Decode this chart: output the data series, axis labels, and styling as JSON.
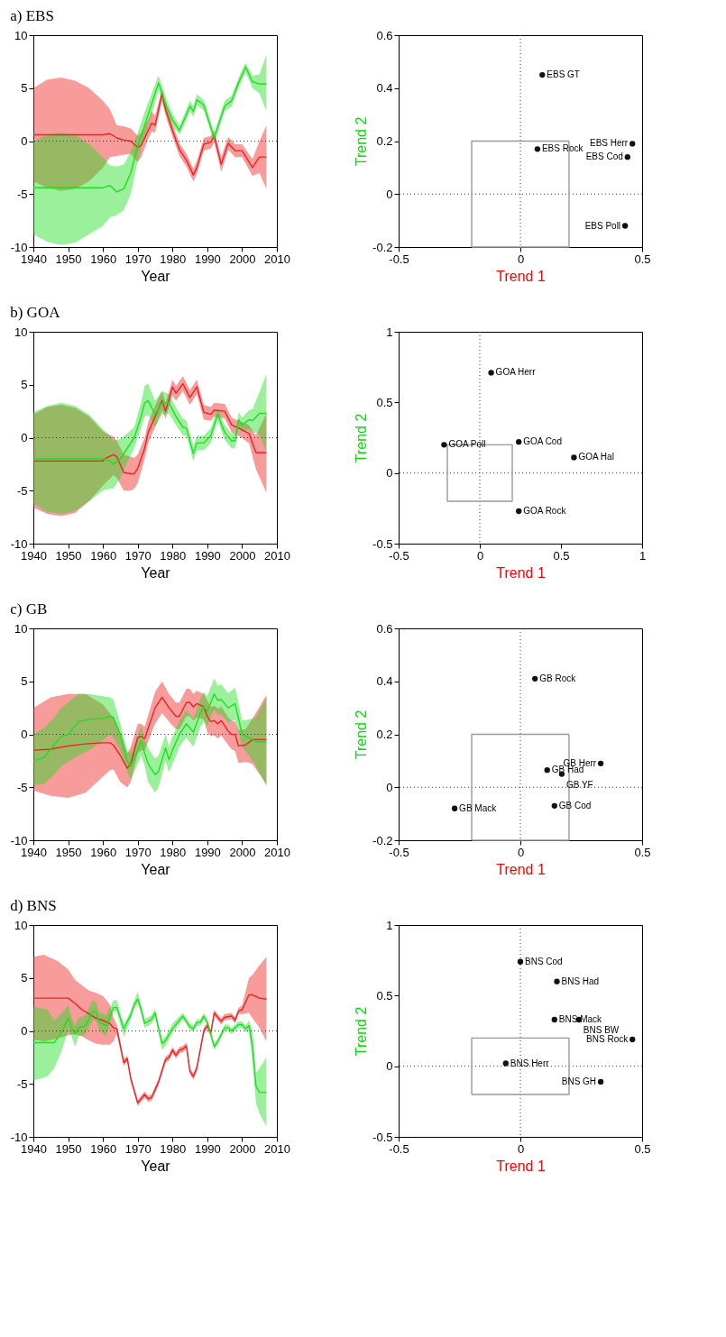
{
  "chart_data": [
    {
      "type": "line",
      "title": "a) EBS",
      "xlabel": "Year",
      "xlim": [
        1940,
        2010
      ],
      "xticks": [
        1940,
        1950,
        1960,
        1970,
        1980,
        1990,
        2000,
        2010
      ],
      "ylim": [
        -10,
        10
      ],
      "yticks": [
        -10,
        -5,
        0,
        5,
        10
      ],
      "ref_lines": [
        {
          "axis": "y",
          "value": 0,
          "line_style": "dotted"
        }
      ],
      "series": [
        {
          "color": "#ee2222",
          "x": [
            1940,
            1944,
            1948,
            1952,
            1956,
            1960,
            1962,
            1964,
            1966,
            1968,
            1970,
            1971,
            1973,
            1974,
            1975,
            1977,
            1978,
            1980,
            1982,
            1984,
            1986,
            1987,
            1989,
            1991,
            1992,
            1994,
            1996,
            1998,
            2000,
            2003,
            2005,
            2007
          ],
          "values": [
            0.6,
            0.6,
            0.6,
            0.6,
            0.6,
            0.6,
            0.7,
            0.3,
            0.1,
            0.0,
            -0.6,
            -0.4,
            1.0,
            1.7,
            1.5,
            4.5,
            3.0,
            1.0,
            -0.8,
            -1.8,
            -3.2,
            -2.5,
            -0.3,
            -0.1,
            0.5,
            -2.2,
            -0.2,
            -0.9,
            -0.9,
            -2.5,
            -1.5,
            -1.5
          ],
          "lower": [
            -3.8,
            -4.4,
            -4.7,
            -4.5,
            -3.8,
            -2.5,
            -1.5,
            -1.4,
            -1.3,
            -1.2,
            -2.0,
            -1.5,
            0.2,
            0.9,
            0.8,
            3.8,
            2.4,
            0.4,
            -1.4,
            -2.4,
            -3.8,
            -3.1,
            -0.9,
            -0.7,
            -0.1,
            -2.9,
            -0.8,
            -1.5,
            -1.5,
            -3.3,
            -3.0,
            -4.5
          ],
          "upper": [
            5.0,
            5.8,
            6.0,
            5.7,
            5.0,
            3.8,
            3.0,
            1.5,
            1.4,
            1.2,
            0.5,
            0.8,
            2.0,
            2.8,
            2.4,
            4.9,
            3.6,
            1.6,
            -0.2,
            -1.2,
            -2.6,
            -1.9,
            0.3,
            0.5,
            1.0,
            -1.5,
            0.4,
            -0.3,
            -0.3,
            -1.7,
            0.0,
            1.5
          ]
        },
        {
          "color": "#22dd22",
          "x": [
            1940,
            1944,
            1948,
            1952,
            1956,
            1960,
            1962,
            1964,
            1966,
            1968,
            1970,
            1972,
            1974,
            1976,
            1977,
            1978,
            1980,
            1982,
            1984,
            1985,
            1986,
            1987,
            1989,
            1992,
            1995,
            1997,
            1999,
            2001,
            2003,
            2005,
            2007
          ],
          "values": [
            -4.4,
            -4.4,
            -4.4,
            -4.4,
            -4.4,
            -4.4,
            -4.2,
            -4.8,
            -4.5,
            -3.0,
            -0.5,
            1.5,
            3.5,
            5.5,
            4.5,
            3.5,
            2.0,
            1.0,
            2.5,
            3.3,
            2.8,
            3.9,
            3.4,
            0.3,
            3.3,
            3.8,
            5.5,
            7.0,
            5.6,
            5.4,
            5.4
          ],
          "lower": [
            -8.8,
            -9.5,
            -9.8,
            -9.6,
            -8.8,
            -8.0,
            -7.2,
            -7.0,
            -6.5,
            -5.0,
            -1.8,
            0.5,
            2.5,
            4.8,
            3.8,
            2.8,
            1.4,
            0.6,
            2.0,
            2.8,
            2.3,
            3.4,
            2.9,
            -0.2,
            2.8,
            3.3,
            5.0,
            6.5,
            5.0,
            4.5,
            2.8
          ],
          "upper": [
            0.0,
            0.6,
            0.8,
            0.6,
            -0.3,
            -1.5,
            -2.3,
            -2.4,
            -2.2,
            -1.0,
            0.8,
            2.7,
            4.5,
            6.2,
            5.2,
            4.2,
            2.6,
            1.5,
            3.0,
            3.8,
            3.3,
            4.4,
            3.9,
            0.8,
            3.8,
            4.3,
            6.0,
            7.4,
            6.2,
            6.3,
            8.2
          ]
        }
      ]
    },
    {
      "type": "scatter",
      "xlabel": "Trend 1",
      "ylabel": "Trend 2",
      "xlim": [
        -0.5,
        0.5
      ],
      "xticks": [
        -0.5,
        0,
        0.5
      ],
      "ylim": [
        -0.2,
        0.6
      ],
      "yticks": [
        -0.2,
        0,
        0.2,
        0.4,
        0.6
      ],
      "ref_lines": [
        {
          "axis": "x",
          "value": 0,
          "line_style": "dotted"
        },
        {
          "axis": "y",
          "value": 0,
          "line_style": "dotted"
        }
      ],
      "series": [
        {
          "type": "line",
          "color": "#999999",
          "x": [
            -0.2,
            -0.2,
            0.2
          ],
          "values": [
            -0.2,
            0.2,
            0.2
          ]
        },
        {
          "type": "line",
          "color": "#999999",
          "x": [
            0.2,
            0.2,
            -0.2
          ],
          "values": [
            0.2,
            -0.2,
            -0.2
          ]
        },
        {
          "name": "EBS GT",
          "color": "#111111",
          "marker": "circle",
          "x": [
            0.09
          ],
          "values": [
            0.45
          ]
        },
        {
          "name": "EBS Rock",
          "color": "#111111",
          "marker": "circle",
          "x": [
            0.07
          ],
          "values": [
            0.17
          ]
        },
        {
          "name": "EBS Herr",
          "color": "#111111",
          "marker": "circle",
          "x": [
            0.46
          ],
          "values": [
            0.19
          ]
        },
        {
          "name": "EBS Cod",
          "color": "#111111",
          "marker": "circle",
          "x": [
            0.44
          ],
          "values": [
            0.14
          ]
        },
        {
          "name": "EBS Poll",
          "color": "#111111",
          "marker": "circle",
          "x": [
            0.43
          ],
          "values": [
            -0.12
          ]
        }
      ]
    },
    {
      "type": "line",
      "title": "b) GOA",
      "xlabel": "Year",
      "xlim": [
        1940,
        2010
      ],
      "xticks": [
        1940,
        1950,
        1960,
        1970,
        1980,
        1990,
        2000,
        2010
      ],
      "ylim": [
        -10,
        10
      ],
      "yticks": [
        -10,
        -5,
        0,
        5,
        10
      ],
      "ref_lines": [
        {
          "axis": "y",
          "value": 0,
          "line_style": "dotted"
        }
      ],
      "series": [
        {
          "color": "#ee2222",
          "x": [
            1940,
            1944,
            1948,
            1952,
            1956,
            1960,
            1961,
            1963,
            1964,
            1966,
            1968,
            1969,
            1970,
            1972,
            1973,
            1975,
            1977,
            1978,
            1980,
            1981,
            1983,
            1985,
            1987,
            1989,
            1991,
            1992,
            1995,
            1997,
            1999,
            2002,
            2004,
            2007
          ],
          "values": [
            -2.2,
            -2.2,
            -2.2,
            -2.2,
            -2.2,
            -2.2,
            -1.9,
            -1.6,
            -1.8,
            -3.3,
            -3.4,
            -3.4,
            -2.9,
            -1.0,
            0.5,
            2.0,
            3.5,
            2.5,
            4.8,
            4.2,
            5.1,
            3.8,
            4.8,
            2.4,
            2.2,
            2.6,
            2.5,
            1.2,
            0.9,
            0.4,
            -1.4,
            -1.4
          ],
          "lower": [
            -6.6,
            -7.2,
            -7.4,
            -7.1,
            -6.0,
            -4.5,
            -4.2,
            -3.5,
            -3.8,
            -5.0,
            -5.0,
            -4.8,
            -4.3,
            -2.0,
            -0.5,
            1.0,
            2.6,
            1.8,
            4.0,
            3.5,
            4.4,
            3.1,
            4.1,
            1.7,
            1.6,
            2.0,
            1.8,
            0.5,
            0.2,
            -0.5,
            -3.0,
            -5.2
          ],
          "upper": [
            2.2,
            2.9,
            3.1,
            2.8,
            2.0,
            0.6,
            0.4,
            0.1,
            -0.3,
            -1.6,
            -1.8,
            -1.9,
            -1.6,
            0.0,
            1.5,
            3.0,
            4.4,
            3.3,
            5.5,
            4.9,
            5.8,
            4.5,
            5.5,
            3.1,
            2.9,
            3.3,
            3.2,
            1.9,
            1.6,
            1.2,
            0.2,
            2.3
          ]
        },
        {
          "color": "#22dd22",
          "x": [
            1940,
            1944,
            1948,
            1952,
            1956,
            1960,
            1962,
            1963,
            1965,
            1967,
            1969,
            1971,
            1972,
            1973,
            1975,
            1977,
            1979,
            1981,
            1983,
            1984,
            1986,
            1987,
            1989,
            1991,
            1993,
            1995,
            1997,
            1998,
            1999,
            2000,
            2002,
            2003,
            2005,
            2007
          ],
          "values": [
            -2.0,
            -2.0,
            -2.0,
            -2.0,
            -2.0,
            -2.0,
            -2.2,
            -2.5,
            -2.0,
            -1.0,
            0.0,
            2.0,
            3.3,
            3.5,
            2.2,
            3.3,
            3.3,
            2.0,
            1.0,
            0.9,
            -1.5,
            -0.5,
            -0.5,
            0.2,
            2.2,
            0.5,
            -0.3,
            -0.3,
            1.7,
            1.2,
            1.7,
            1.6,
            2.3,
            2.3
          ],
          "lower": [
            -6.2,
            -7.0,
            -7.2,
            -6.9,
            -6.0,
            -5.0,
            -4.8,
            -4.8,
            -3.8,
            -2.3,
            -1.0,
            1.0,
            2.0,
            2.2,
            1.0,
            2.2,
            2.3,
            1.2,
            0.2,
            0.2,
            -2.2,
            -1.2,
            -1.2,
            -0.5,
            1.6,
            -0.2,
            -1.0,
            -1.0,
            1.0,
            0.5,
            0.8,
            0.6,
            0.3,
            -1.3
          ],
          "upper": [
            2.4,
            3.0,
            3.3,
            3.0,
            2.2,
            0.8,
            0.2,
            -0.3,
            -0.1,
            0.4,
            1.0,
            3.4,
            4.9,
            5.1,
            3.5,
            4.4,
            4.1,
            2.8,
            1.8,
            1.6,
            -0.8,
            0.2,
            0.2,
            0.9,
            2.8,
            1.2,
            0.4,
            0.4,
            2.4,
            1.9,
            2.6,
            2.7,
            4.3,
            6.0
          ]
        }
      ]
    },
    {
      "type": "scatter",
      "xlabel": "Trend 1",
      "ylabel": "Trend 2",
      "xlim": [
        -0.5,
        1
      ],
      "xticks": [
        -0.5,
        0,
        0.5,
        1
      ],
      "ylim": [
        -0.5,
        1
      ],
      "yticks": [
        -0.5,
        0,
        0.5,
        1
      ],
      "ref_lines": [
        {
          "axis": "x",
          "value": 0,
          "line_style": "dotted"
        },
        {
          "axis": "y",
          "value": 0,
          "line_style": "dotted"
        }
      ],
      "series": [
        {
          "type": "line",
          "color": "#999999",
          "x": [
            -0.2,
            -0.2,
            0.2
          ],
          "values": [
            -0.2,
            0.2,
            0.2
          ]
        },
        {
          "type": "line",
          "color": "#999999",
          "x": [
            0.2,
            0.2,
            -0.2
          ],
          "values": [
            0.2,
            -0.2,
            -0.2
          ]
        },
        {
          "name": "GOA Herr",
          "color": "#111111",
          "marker": "circle",
          "x": [
            0.07
          ],
          "values": [
            0.71
          ]
        },
        {
          "name": "GOA Poll",
          "color": "#111111",
          "marker": "circle",
          "x": [
            -0.22
          ],
          "values": [
            0.2
          ]
        },
        {
          "name": "GOA Cod",
          "color": "#111111",
          "marker": "circle",
          "x": [
            0.24
          ],
          "values": [
            0.22
          ]
        },
        {
          "name": "GOA Hal",
          "color": "#111111",
          "marker": "circle",
          "x": [
            0.58
          ],
          "values": [
            0.11
          ]
        },
        {
          "name": "GOA Rock",
          "color": "#111111",
          "marker": "circle",
          "x": [
            0.24
          ],
          "values": [
            -0.27
          ]
        }
      ]
    },
    {
      "type": "line",
      "title": "c) GB",
      "xlabel": "Year",
      "xlim": [
        1940,
        2010
      ],
      "xticks": [
        1940,
        1950,
        1960,
        1970,
        1980,
        1990,
        2000,
        2010
      ],
      "ylim": [
        -10,
        10
      ],
      "yticks": [
        -10,
        -5,
        0,
        5,
        10
      ],
      "ref_lines": [
        {
          "axis": "y",
          "value": 0,
          "line_style": "dotted"
        }
      ],
      "series": [
        {
          "color": "#ee2222",
          "x": [
            1940,
            1945,
            1950,
            1955,
            1960,
            1962,
            1963,
            1965,
            1967,
            1968,
            1970,
            1971,
            1972,
            1975,
            1977,
            1979,
            1981,
            1982,
            1984,
            1985,
            1986,
            1987,
            1989,
            1990,
            1991,
            1992,
            1993,
            1994,
            1996,
            1997,
            1998,
            1999,
            2001,
            2003,
            2007
          ],
          "values": [
            -1.5,
            -1.4,
            -1.1,
            -0.9,
            -0.8,
            -0.8,
            -1.0,
            -2.0,
            -3.2,
            -2.8,
            -0.3,
            -0.2,
            -0.4,
            2.5,
            3.5,
            2.5,
            1.7,
            1.7,
            3.0,
            3.0,
            2.6,
            2.9,
            2.6,
            1.7,
            1.2,
            1.3,
            1.0,
            1.3,
            0.3,
            0.0,
            0.0,
            -1.1,
            -1.0,
            -0.5,
            -0.5
          ],
          "lower": [
            -5.3,
            -5.8,
            -6.0,
            -5.5,
            -4.0,
            -3.4,
            -3.3,
            -4.5,
            -5.0,
            -4.5,
            -1.8,
            -1.5,
            -1.5,
            1.0,
            2.0,
            1.2,
            0.5,
            0.5,
            1.7,
            1.7,
            1.3,
            1.6,
            1.4,
            0.2,
            -0.2,
            -0.1,
            -0.4,
            -0.1,
            -1.0,
            -1.4,
            -1.6,
            -2.7,
            -2.6,
            -2.8,
            -4.7
          ],
          "upper": [
            2.5,
            3.5,
            3.8,
            3.8,
            2.8,
            2.0,
            1.5,
            0.2,
            -1.8,
            -1.2,
            1.0,
            1.0,
            0.7,
            4.0,
            5.0,
            3.8,
            3.0,
            3.0,
            4.3,
            4.3,
            3.8,
            4.1,
            3.8,
            3.2,
            2.6,
            2.7,
            2.4,
            2.6,
            1.6,
            1.3,
            1.2,
            0.4,
            0.5,
            1.5,
            3.7
          ]
        },
        {
          "color": "#22dd22",
          "x": [
            1940,
            1943,
            1946,
            1948,
            1950,
            1953,
            1956,
            1960,
            1962,
            1963,
            1965,
            1967,
            1968,
            1970,
            1971,
            1972,
            1973,
            1975,
            1976,
            1978,
            1979,
            1980,
            1982,
            1984,
            1986,
            1988,
            1989,
            1990,
            1992,
            1993,
            1994,
            1996,
            1998,
            2000,
            2002,
            2004,
            2007
          ],
          "values": [
            -2.5,
            -2.2,
            -1.0,
            -0.2,
            0.0,
            1.2,
            1.4,
            1.5,
            1.7,
            1.6,
            0.0,
            -2.5,
            -3.0,
            -1.5,
            -0.6,
            -1.8,
            -2.8,
            -3.8,
            -3.5,
            -1.3,
            -2.4,
            -1.5,
            0.0,
            1.0,
            0.2,
            2.0,
            2.6,
            2.2,
            3.8,
            3.2,
            3.3,
            2.5,
            2.9,
            0.0,
            -0.3,
            -0.7,
            -0.7
          ],
          "lower": [
            -4.8,
            -4.7,
            -3.8,
            -3.0,
            -2.6,
            -2.0,
            -1.5,
            -0.6,
            0.0,
            -0.3,
            -1.5,
            -3.5,
            -4.3,
            -2.8,
            -2.0,
            -3.0,
            -4.5,
            -5.5,
            -5.0,
            -2.5,
            -3.6,
            -2.8,
            -1.2,
            -0.3,
            -1.2,
            0.7,
            1.2,
            0.8,
            2.4,
            1.8,
            1.9,
            1.1,
            1.4,
            -1.2,
            -2.0,
            -3.0,
            -4.9
          ],
          "upper": [
            0.0,
            0.6,
            1.6,
            2.5,
            3.0,
            3.8,
            3.8,
            3.6,
            3.5,
            3.3,
            1.0,
            -1.5,
            -1.8,
            -0.2,
            0.8,
            -0.5,
            -1.3,
            -2.3,
            -2.0,
            0.0,
            -1.2,
            -0.2,
            1.3,
            2.3,
            1.5,
            3.3,
            4.0,
            3.6,
            5.3,
            4.6,
            4.7,
            3.9,
            4.4,
            1.3,
            1.4,
            1.6,
            3.5
          ]
        }
      ]
    },
    {
      "type": "scatter",
      "xlabel": "Trend 1",
      "ylabel": "Trend 2",
      "xlim": [
        -0.5,
        0.5
      ],
      "xticks": [
        -0.5,
        0,
        0.5
      ],
      "ylim": [
        -0.2,
        0.6
      ],
      "yticks": [
        -0.2,
        0,
        0.2,
        0.4,
        0.6
      ],
      "ref_lines": [
        {
          "axis": "x",
          "value": 0,
          "line_style": "dotted"
        },
        {
          "axis": "y",
          "value": 0,
          "line_style": "dotted"
        }
      ],
      "series": [
        {
          "type": "line",
          "color": "#999999",
          "x": [
            -0.2,
            -0.2,
            0.2
          ],
          "values": [
            -0.2,
            0.2,
            0.2
          ]
        },
        {
          "type": "line",
          "color": "#999999",
          "x": [
            0.2,
            0.2,
            -0.2
          ],
          "values": [
            0.2,
            -0.2,
            -0.2
          ]
        },
        {
          "name": "GB Rock",
          "color": "#111111",
          "marker": "circle",
          "x": [
            0.06
          ],
          "values": [
            0.41
          ]
        },
        {
          "name": "GB Had",
          "color": "#111111",
          "marker": "circle",
          "x": [
            0.11
          ],
          "values": [
            0.065
          ]
        },
        {
          "name": "GB YF",
          "color": "#111111",
          "marker": "circle",
          "x": [
            0.17
          ],
          "values": [
            0.05
          ]
        },
        {
          "name": "GB Herr",
          "color": "#111111",
          "marker": "circle",
          "x": [
            0.33
          ],
          "values": [
            0.09
          ]
        },
        {
          "name": "GB Cod",
          "color": "#111111",
          "marker": "circle",
          "x": [
            0.14
          ],
          "values": [
            -0.07
          ]
        },
        {
          "name": "GB Mack",
          "color": "#111111",
          "marker": "circle",
          "x": [
            -0.27
          ],
          "values": [
            -0.08
          ]
        }
      ]
    },
    {
      "type": "line",
      "title": "d) BNS",
      "xlabel": "Year",
      "xlim": [
        1940,
        2010
      ],
      "xticks": [
        1940,
        1950,
        1960,
        1970,
        1980,
        1990,
        2000,
        2010
      ],
      "ylim": [
        -10,
        10
      ],
      "yticks": [
        -10,
        -5,
        0,
        5,
        10
      ],
      "ref_lines": [
        {
          "axis": "y",
          "value": 0,
          "line_style": "dotted"
        }
      ],
      "series": [
        {
          "color": "#ee2222",
          "x": [
            1940,
            1943,
            1947,
            1950,
            1952,
            1954,
            1956,
            1958,
            1960,
            1962,
            1963,
            1964,
            1966,
            1967,
            1968,
            1970,
            1972,
            1973,
            1974,
            1976,
            1978,
            1979,
            1980,
            1981,
            1982,
            1983,
            1984,
            1985,
            1986,
            1987,
            1989,
            1990,
            1991,
            1992,
            1994,
            1995,
            1997,
            1998,
            1999,
            2000,
            2002,
            2003,
            2005,
            2007
          ],
          "values": [
            3.1,
            3.1,
            3.1,
            3.1,
            2.6,
            2.0,
            1.6,
            1.2,
            1.0,
            0.7,
            0.3,
            0.2,
            -3.0,
            -2.6,
            -4.5,
            -6.8,
            -6.0,
            -6.4,
            -6.3,
            -4.8,
            -2.7,
            -2.5,
            -1.8,
            -2.3,
            -1.8,
            -1.7,
            -1.4,
            -3.8,
            -4.3,
            -3.5,
            0.0,
            0.5,
            -0.2,
            1.7,
            0.9,
            1.3,
            1.4,
            1.0,
            1.9,
            2.0,
            3.4,
            3.4,
            3.1,
            3.0
          ],
          "lower": [
            -0.8,
            -1.0,
            -0.7,
            -0.4,
            -0.3,
            -0.5,
            -0.9,
            -1.2,
            -1.3,
            -1.3,
            -1.0,
            -0.3,
            -3.3,
            -2.9,
            -4.8,
            -7.1,
            -6.3,
            -6.7,
            -6.6,
            -5.1,
            -3.0,
            -2.8,
            -2.1,
            -2.6,
            -2.1,
            -2.0,
            -1.7,
            -4.1,
            -4.6,
            -3.8,
            -0.3,
            0.2,
            -0.5,
            1.4,
            0.6,
            1.0,
            1.1,
            0.7,
            1.6,
            1.6,
            1.7,
            1.2,
            0.3,
            -1.0
          ],
          "upper": [
            7.0,
            7.2,
            6.6,
            5.8,
            4.8,
            4.3,
            3.8,
            3.6,
            3.3,
            2.5,
            1.3,
            0.6,
            -2.7,
            -2.3,
            -4.2,
            -6.5,
            -5.7,
            -6.1,
            -6.0,
            -4.5,
            -2.4,
            -2.2,
            -1.5,
            -2.0,
            -1.5,
            -1.4,
            -1.1,
            -3.5,
            -4.0,
            -3.2,
            0.3,
            0.8,
            0.1,
            2.0,
            1.2,
            1.6,
            1.7,
            1.3,
            2.2,
            2.4,
            5.0,
            5.3,
            6.2,
            7.0
          ]
        },
        {
          "color": "#22dd22",
          "x": [
            1940,
            1944,
            1946,
            1948,
            1950,
            1951,
            1952,
            1953,
            1955,
            1957,
            1958,
            1959,
            1961,
            1963,
            1964,
            1966,
            1968,
            1969,
            1970,
            1971,
            1972,
            1974,
            1975,
            1977,
            1978,
            1980,
            1983,
            1985,
            1986,
            1987,
            1988,
            1989,
            1990,
            1991,
            1992,
            1993,
            1995,
            1996,
            1997,
            1999,
            2000,
            2001,
            2002,
            2003,
            2004,
            2005,
            2007
          ],
          "values": [
            -1.1,
            -1.1,
            -1.1,
            -0.2,
            1.2,
            0.3,
            -0.3,
            0.3,
            0.5,
            1.8,
            1.8,
            0.8,
            0.5,
            2.2,
            2.2,
            0.2,
            1.5,
            2.5,
            3.0,
            2.0,
            0.7,
            1.1,
            1.7,
            -1.2,
            -0.9,
            0.2,
            1.4,
            0.4,
            0.2,
            0.8,
            0.8,
            1.4,
            0.8,
            -0.3,
            -1.5,
            -1.0,
            0.3,
            0.3,
            0.0,
            0.6,
            0.6,
            0.2,
            0.5,
            -1.5,
            -5.2,
            -5.8,
            -5.8
          ],
          "lower": [
            -4.7,
            -4.3,
            -3.5,
            -2.0,
            0.0,
            -0.5,
            -1.5,
            -0.5,
            -0.3,
            1.0,
            1.0,
            0.0,
            -0.5,
            1.8,
            1.8,
            -0.6,
            1.1,
            2.1,
            2.6,
            1.6,
            0.3,
            0.7,
            1.3,
            -1.8,
            -1.4,
            -0.2,
            1.1,
            0.1,
            -0.1,
            0.5,
            0.5,
            1.1,
            0.5,
            -0.6,
            -1.8,
            -1.3,
            0.0,
            0.0,
            -0.3,
            0.3,
            0.3,
            -0.1,
            0.0,
            -3.0,
            -6.8,
            -7.8,
            -9.0
          ],
          "upper": [
            2.3,
            2.0,
            1.0,
            1.6,
            2.5,
            1.2,
            0.5,
            1.2,
            1.5,
            2.9,
            2.7,
            1.7,
            1.5,
            2.9,
            2.9,
            0.6,
            1.9,
            2.9,
            3.7,
            2.4,
            1.1,
            1.5,
            2.1,
            -0.8,
            -0.5,
            0.7,
            1.7,
            0.7,
            0.5,
            1.1,
            1.1,
            1.7,
            1.1,
            0.0,
            -1.2,
            -0.7,
            0.6,
            0.6,
            0.3,
            0.9,
            0.9,
            0.5,
            1.0,
            0.0,
            -4.0,
            -3.5,
            -2.5
          ]
        }
      ]
    },
    {
      "type": "scatter",
      "xlabel": "Trend 1",
      "ylabel": "Trend 2",
      "xlim": [
        -0.5,
        0.5
      ],
      "xticks": [
        -0.5,
        0,
        0.5
      ],
      "ylim": [
        -0.5,
        1
      ],
      "yticks": [
        -0.5,
        0,
        0.5,
        1
      ],
      "ref_lines": [
        {
          "axis": "x",
          "value": 0,
          "line_style": "dotted"
        },
        {
          "axis": "y",
          "value": 0,
          "line_style": "dotted"
        }
      ],
      "series": [
        {
          "type": "line",
          "color": "#999999",
          "x": [
            -0.2,
            -0.2,
            0.2
          ],
          "values": [
            -0.2,
            0.2,
            0.2
          ]
        },
        {
          "type": "line",
          "color": "#999999",
          "x": [
            0.2,
            0.2,
            -0.2
          ],
          "values": [
            0.2,
            -0.2,
            -0.2
          ]
        },
        {
          "name": "BNS Cod",
          "color": "#111111",
          "marker": "circle",
          "x": [
            0.0
          ],
          "values": [
            0.74
          ]
        },
        {
          "name": "BNS Had",
          "color": "#111111",
          "marker": "circle",
          "x": [
            0.15
          ],
          "values": [
            0.6
          ]
        },
        {
          "name": "BNS Mack",
          "color": "#111111",
          "marker": "circle",
          "x": [
            0.14
          ],
          "values": [
            0.33
          ]
        },
        {
          "name": "BNS BW",
          "color": "#111111",
          "marker": "circle",
          "x": [
            0.24
          ],
          "values": [
            0.33
          ]
        },
        {
          "name": "BNS Rock",
          "color": "#111111",
          "marker": "circle",
          "x": [
            0.46
          ],
          "values": [
            0.19
          ]
        },
        {
          "name": "BNS Herr",
          "color": "#111111",
          "marker": "circle",
          "x": [
            -0.06
          ],
          "values": [
            0.02
          ]
        },
        {
          "name": "BNS GH",
          "color": "#111111",
          "marker": "circle",
          "x": [
            0.33
          ],
          "values": [
            -0.11
          ]
        }
      ]
    }
  ]
}
